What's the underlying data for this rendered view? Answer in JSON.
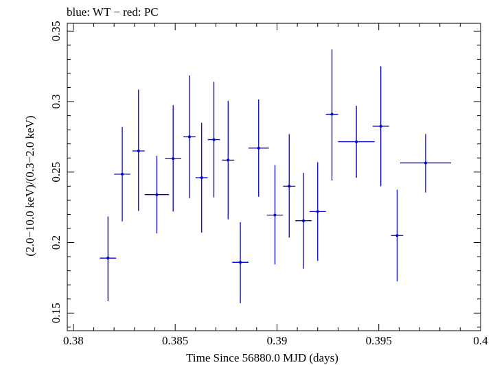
{
  "chart_data": {
    "type": "scatter",
    "title": "blue: WT − red: PC",
    "xlabel": "Time Since 56880.0 MJD (days)",
    "ylabel": "(2.0−10.0 keV)/(0.3−2.0 keV)",
    "xlim": [
      0.3797,
      0.4
    ],
    "ylim": [
      0.1375,
      0.3555
    ],
    "x_ticks": [
      0.38,
      0.385,
      0.39,
      0.395,
      0.4
    ],
    "x_tick_labels": [
      "0.38",
      "0.385",
      "0.39",
      "0.395",
      "0.4"
    ],
    "y_ticks": [
      0.15,
      0.2,
      0.25,
      0.3,
      0.35
    ],
    "y_tick_labels": [
      "0.15",
      "0.2",
      "0.25",
      "0.3",
      "0.35"
    ],
    "x_minor_step": 0.001,
    "y_minor_step": 0.01,
    "grid": false,
    "series": [
      {
        "color": "#0000cc",
        "points": [
          {
            "x": 0.3817,
            "y": 0.189,
            "xerr": 0.0004,
            "yerr_lo": 0.0305,
            "yerr_hi": 0.0295
          },
          {
            "x": 0.3824,
            "y": 0.2485,
            "xerr": 0.0004,
            "yerr_lo": 0.0335,
            "yerr_hi": 0.0335
          },
          {
            "x": 0.3832,
            "y": 0.265,
            "xerr": 0.0003,
            "yerr_lo": 0.0425,
            "yerr_hi": 0.0435
          },
          {
            "x": 0.3841,
            "y": 0.234,
            "xerr": 0.0006,
            "yerr_lo": 0.0275,
            "yerr_hi": 0.0275
          },
          {
            "x": 0.3849,
            "y": 0.2595,
            "xerr": 0.0004,
            "yerr_lo": 0.0375,
            "yerr_hi": 0.038
          },
          {
            "x": 0.3857,
            "y": 0.275,
            "xerr": 0.0003,
            "yerr_lo": 0.0435,
            "yerr_hi": 0.0435
          },
          {
            "x": 0.3863,
            "y": 0.246,
            "xerr": 0.0003,
            "yerr_lo": 0.039,
            "yerr_hi": 0.039
          },
          {
            "x": 0.3869,
            "y": 0.273,
            "xerr": 0.0003,
            "yerr_lo": 0.041,
            "yerr_hi": 0.041
          },
          {
            "x": 0.3876,
            "y": 0.2585,
            "xerr": 0.0003,
            "yerr_lo": 0.042,
            "yerr_hi": 0.042
          },
          {
            "x": 0.3882,
            "y": 0.186,
            "xerr": 0.0004,
            "yerr_lo": 0.029,
            "yerr_hi": 0.0285
          },
          {
            "x": 0.3891,
            "y": 0.267,
            "xerr": 0.0005,
            "yerr_lo": 0.0345,
            "yerr_hi": 0.0345
          },
          {
            "x": 0.3899,
            "y": 0.2195,
            "xerr": 0.0004,
            "yerr_lo": 0.035,
            "yerr_hi": 0.0355
          },
          {
            "x": 0.3906,
            "y": 0.24,
            "xerr": 0.0003,
            "yerr_lo": 0.0365,
            "yerr_hi": 0.037
          },
          {
            "x": 0.3913,
            "y": 0.2155,
            "xerr": 0.0004,
            "yerr_lo": 0.034,
            "yerr_hi": 0.034
          },
          {
            "x": 0.392,
            "y": 0.222,
            "xerr": 0.0004,
            "yerr_lo": 0.035,
            "yerr_hi": 0.035
          },
          {
            "x": 0.3927,
            "y": 0.291,
            "xerr": 0.0003,
            "yerr_lo": 0.047,
            "yerr_hi": 0.046
          },
          {
            "x": 0.3939,
            "y": 0.2715,
            "xerr": 0.0009,
            "yerr_lo": 0.0255,
            "yerr_hi": 0.0255
          },
          {
            "x": 0.3951,
            "y": 0.2825,
            "xerr": 0.0004,
            "yerr_lo": 0.0425,
            "yerr_hi": 0.0425
          },
          {
            "x": 0.3959,
            "y": 0.205,
            "xerr": 0.0003,
            "yerr_lo": 0.0325,
            "yerr_hi": 0.0325
          },
          {
            "x": 0.3973,
            "y": 0.2565,
            "xerr": 0.00125,
            "yerr_lo": 0.021,
            "yerr_hi": 0.0205
          }
        ]
      }
    ]
  }
}
